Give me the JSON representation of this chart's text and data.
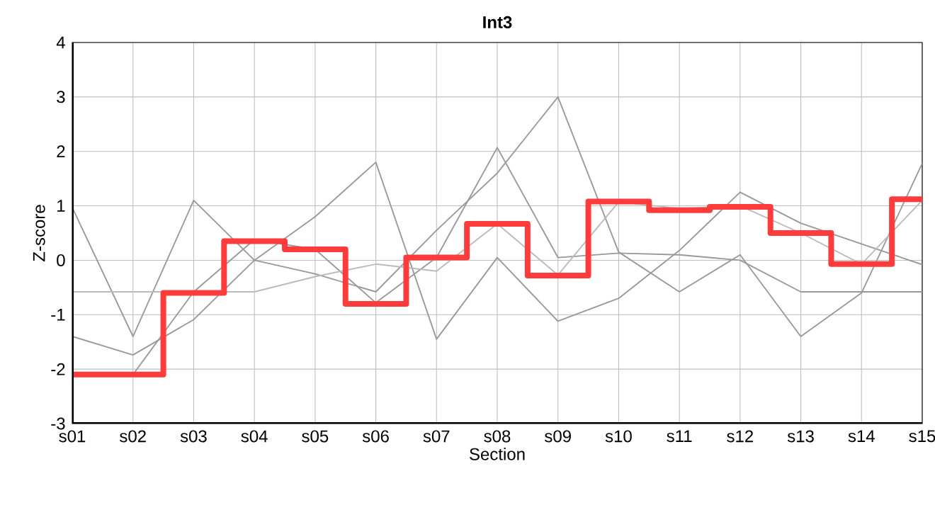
{
  "chart_data": {
    "type": "line",
    "title": "Int3",
    "xlabel": "Section",
    "ylabel": "Z-score",
    "categories": [
      "s01",
      "s02",
      "s03",
      "s04",
      "s05",
      "s06",
      "s07",
      "s08",
      "s09",
      "s10",
      "s11",
      "s12",
      "s13",
      "s14",
      "s15"
    ],
    "series": [
      {
        "color": "#999999",
        "values": [
          0.97,
          -1.4,
          1.1,
          0.0,
          -0.25,
          -0.58,
          0.55,
          1.6,
          3.0,
          0.15,
          -0.58,
          0.1,
          -1.4,
          -0.6,
          1.78
        ]
      },
      {
        "color": "#999999",
        "values": [
          -1.4,
          -1.74,
          -1.09,
          0.0,
          0.8,
          1.8,
          -1.45,
          0.05,
          -1.12,
          -0.7,
          0.18,
          1.25,
          0.68,
          0.3,
          -0.08
        ]
      },
      {
        "color": "#999999",
        "values": [
          -2.1,
          -2.1,
          -0.58,
          0.38,
          0.2,
          -0.78,
          0.05,
          2.07,
          0.05,
          0.13,
          0.1,
          0.0,
          -0.58,
          -0.58,
          -0.58
        ]
      },
      {
        "color": "#bbbbbb",
        "values": [
          -0.58,
          -0.58,
          -0.58,
          -0.58,
          -0.3,
          -0.07,
          -0.2,
          0.67,
          -0.27,
          1.07,
          0.95,
          1.0,
          0.5,
          -0.07,
          1.1
        ]
      },
      {
        "type": "step",
        "color": "#ff3b3b",
        "values": [
          -2.1,
          -2.1,
          -0.6,
          0.35,
          0.2,
          -0.8,
          0.05,
          0.67,
          -0.28,
          1.08,
          0.92,
          0.98,
          0.5,
          -0.07,
          1.12
        ]
      }
    ],
    "ylim": [
      -3,
      4
    ],
    "yticks": [
      -3,
      -2,
      -1,
      0,
      1,
      2,
      3,
      4
    ],
    "grid": true,
    "marker": "none",
    "line_style": "solid"
  }
}
